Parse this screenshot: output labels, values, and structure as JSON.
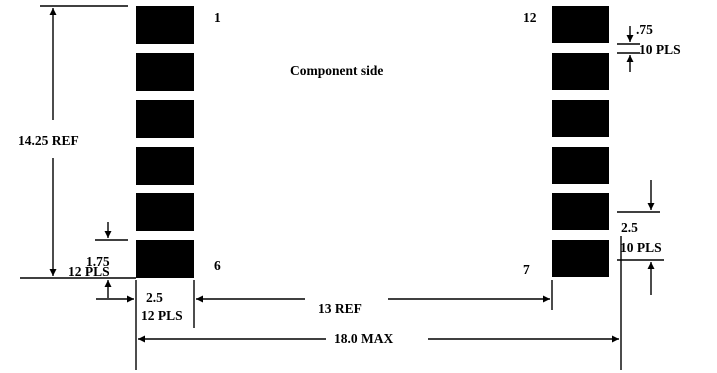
{
  "title": "Component side",
  "pin_labels": {
    "left_top": "1",
    "left_bottom": "6",
    "right_top": "12",
    "right_bottom": "7"
  },
  "dimensions": {
    "height_ref": "14.25 REF",
    "gap_value": "1.75",
    "gap_qty": "12 PLS",
    "width_value": "2.5",
    "width_qty": "12 PLS",
    "span_ref": "13 REF",
    "overall": "18.0 MAX",
    "pad_height_value": "2.5",
    "pad_height_qty": "10 PLS",
    "small_gap_value": ".75",
    "small_gap_qty": "10 PLS"
  }
}
